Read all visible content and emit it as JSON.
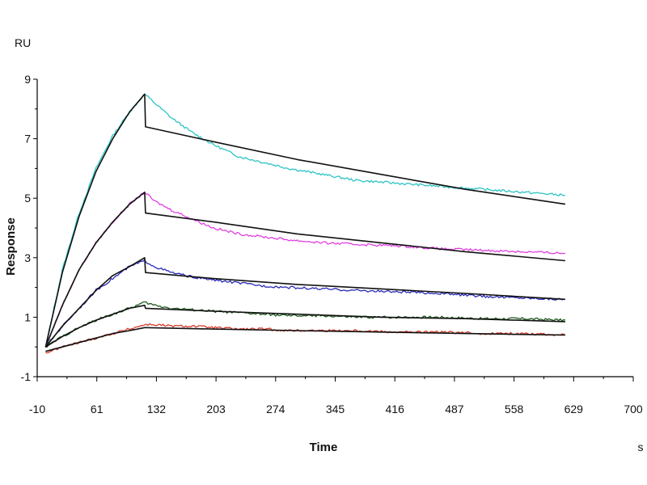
{
  "chart_data": {
    "type": "line",
    "title": "",
    "xlabel": "Time",
    "ylabel": "Response",
    "x_unit": "s",
    "y_unit": "RU",
    "xlim": [
      -10,
      700
    ],
    "ylim": [
      -1,
      9
    ],
    "x_ticks": [
      -10,
      61,
      132,
      203,
      274,
      345,
      416,
      487,
      558,
      629,
      700
    ],
    "y_ticks": [
      -1,
      1,
      3,
      5,
      7,
      9
    ],
    "grid": false,
    "legend": "none",
    "series": [
      {
        "color": "#2ec4c4",
        "kind": "measured",
        "x": [
          0,
          20,
          40,
          60,
          80,
          100,
          118,
          130,
          150,
          175,
          200,
          230,
          260,
          290,
          330,
          370,
          420,
          470,
          520,
          570,
          619
        ],
        "values": [
          0,
          2.6,
          4.5,
          6.0,
          7.1,
          7.9,
          8.5,
          8.2,
          7.7,
          7.2,
          6.8,
          6.4,
          6.2,
          6.0,
          5.8,
          5.6,
          5.5,
          5.4,
          5.3,
          5.2,
          5.1
        ]
      },
      {
        "color": "#111111",
        "kind": "fit",
        "x": [
          0,
          20,
          40,
          60,
          80,
          100,
          118,
          119,
          200,
          300,
          400,
          500,
          619
        ],
        "values": [
          0,
          2.5,
          4.4,
          5.9,
          7.0,
          7.9,
          8.5,
          7.4,
          6.9,
          6.3,
          5.8,
          5.3,
          4.8
        ]
      },
      {
        "color": "#e040e0",
        "kind": "measured",
        "x": [
          0,
          20,
          40,
          60,
          80,
          100,
          118,
          130,
          150,
          175,
          200,
          230,
          260,
          290,
          330,
          370,
          420,
          470,
          520,
          570,
          619
        ],
        "values": [
          0,
          1.4,
          2.6,
          3.5,
          4.2,
          4.8,
          5.2,
          4.9,
          4.6,
          4.3,
          4.0,
          3.8,
          3.7,
          3.6,
          3.5,
          3.45,
          3.4,
          3.3,
          3.25,
          3.2,
          3.15
        ]
      },
      {
        "color": "#111111",
        "kind": "fit",
        "x": [
          0,
          20,
          40,
          60,
          80,
          100,
          118,
          119,
          200,
          300,
          400,
          500,
          619
        ],
        "values": [
          0,
          1.4,
          2.6,
          3.5,
          4.2,
          4.8,
          5.2,
          4.5,
          4.2,
          3.8,
          3.5,
          3.2,
          2.9
        ]
      },
      {
        "color": "#2a2ab8",
        "kind": "measured",
        "x": [
          0,
          20,
          40,
          60,
          80,
          100,
          118,
          130,
          150,
          175,
          200,
          230,
          260,
          290,
          330,
          370,
          420,
          470,
          520,
          570,
          619
        ],
        "values": [
          0,
          0.7,
          1.3,
          1.9,
          2.3,
          2.7,
          2.9,
          2.7,
          2.5,
          2.35,
          2.25,
          2.15,
          2.05,
          2.0,
          1.95,
          1.9,
          1.85,
          1.8,
          1.7,
          1.65,
          1.6
        ]
      },
      {
        "color": "#111111",
        "kind": "fit",
        "x": [
          0,
          20,
          40,
          60,
          80,
          100,
          118,
          119,
          200,
          300,
          400,
          500,
          619
        ],
        "values": [
          0,
          0.7,
          1.3,
          1.9,
          2.4,
          2.7,
          3.0,
          2.5,
          2.3,
          2.1,
          1.95,
          1.8,
          1.6
        ]
      },
      {
        "color": "#1e5a1e",
        "kind": "measured",
        "x": [
          0,
          20,
          40,
          60,
          80,
          100,
          118,
          130,
          150,
          175,
          200,
          230,
          260,
          290,
          330,
          370,
          420,
          470,
          520,
          570,
          619
        ],
        "values": [
          0,
          0.35,
          0.65,
          0.9,
          1.1,
          1.3,
          1.5,
          1.4,
          1.3,
          1.25,
          1.2,
          1.15,
          1.1,
          1.05,
          1.05,
          1.0,
          1.0,
          1.0,
          0.95,
          0.95,
          0.9
        ]
      },
      {
        "color": "#111111",
        "kind": "fit",
        "x": [
          0,
          20,
          40,
          60,
          80,
          100,
          118,
          119,
          200,
          300,
          400,
          500,
          619
        ],
        "values": [
          0,
          0.35,
          0.65,
          0.9,
          1.1,
          1.3,
          1.4,
          1.3,
          1.2,
          1.1,
          1.0,
          0.95,
          0.85
        ]
      },
      {
        "color": "#d63a2a",
        "kind": "measured",
        "x": [
          0,
          20,
          40,
          60,
          80,
          100,
          118,
          130,
          150,
          175,
          200,
          230,
          260,
          290,
          330,
          370,
          420,
          470,
          520,
          570,
          619
        ],
        "values": [
          -0.2,
          0.0,
          0.15,
          0.3,
          0.45,
          0.6,
          0.75,
          0.75,
          0.7,
          0.7,
          0.65,
          0.6,
          0.6,
          0.55,
          0.55,
          0.55,
          0.5,
          0.5,
          0.45,
          0.45,
          0.4
        ]
      },
      {
        "color": "#111111",
        "kind": "fit",
        "x": [
          0,
          20,
          40,
          60,
          80,
          100,
          118,
          119,
          200,
          300,
          400,
          500,
          619
        ],
        "values": [
          -0.15,
          0.0,
          0.15,
          0.3,
          0.45,
          0.55,
          0.65,
          0.65,
          0.6,
          0.55,
          0.5,
          0.45,
          0.4
        ]
      }
    ]
  }
}
